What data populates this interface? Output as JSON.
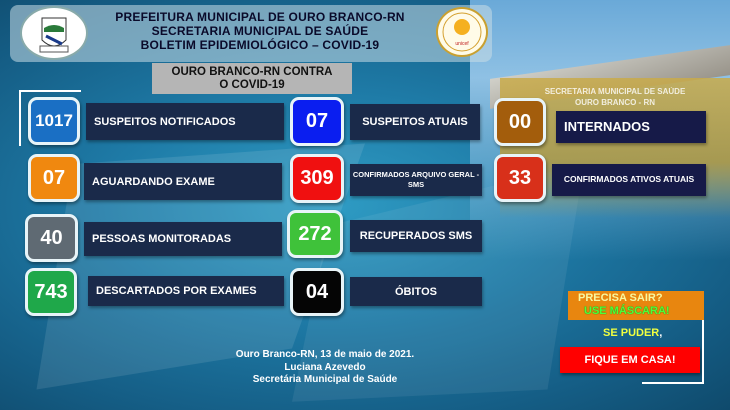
{
  "header": {
    "line1": "PREFEITURA MUNICIPAL DE OURO BRANCO-RN",
    "line2": "SECRETARIA MUNICIPAL DE SAÚDE",
    "line3": "BOLETIM EPIDEMIOLÓGICO – COVID-19",
    "left_logo": "Ouro Branco coat of arms",
    "right_logo": "UNICEF seal"
  },
  "subtitle": {
    "line1": "OURO BRANCO-RN CONTRA",
    "line2": "O COVID-19"
  },
  "building_sign": {
    "line1": "SECRETARIA MUNICIPAL DE SAÚDE",
    "line2": "OURO BRANCO - RN"
  },
  "stats": [
    {
      "value": "1017",
      "label": "SUSPEITOS NOTIFICADOS",
      "color": "#1a6fc4"
    },
    {
      "value": "07",
      "label": "AGUARDANDO  EXAME",
      "color": "#f0880f"
    },
    {
      "value": "40",
      "label": "PESSOAS MONITORADAS",
      "color": "#5f6a73"
    },
    {
      "value": "743",
      "label": "DESCARTADOS  POR EXAMES",
      "color": "#1fa84a"
    },
    {
      "value": "07",
      "label": "SUSPEITOS ATUAIS",
      "color": "#0a1ef0"
    },
    {
      "value": "309",
      "label": "CONFIRMADOS ARQUIVO GERAL -   SMS",
      "color": "#f01010"
    },
    {
      "value": "272",
      "label": "RECUPERADOS SMS",
      "color": "#3fc23a"
    },
    {
      "value": "04",
      "label": "ÓBITOS",
      "color": "#050505"
    },
    {
      "value": "00",
      "label": "INTERNADOS",
      "color": "#a35d0c"
    },
    {
      "value": "33",
      "label": "CONFIRMADOS ATIVOS ATUAIS",
      "color": "#d8301a"
    }
  ],
  "footer": {
    "line1": "Ouro Branco-RN, 13 de maio  de 2021.",
    "line2": "Luciana Azevedo",
    "line3": "Secretária Municipal de Saúde"
  },
  "campaign": {
    "question": "PRECISA SAIR?",
    "mask": "USE MÁSCARA!",
    "se_puder": "SE PUDER",
    "comma": ",",
    "stay": "FIQUE EM CASA!"
  }
}
